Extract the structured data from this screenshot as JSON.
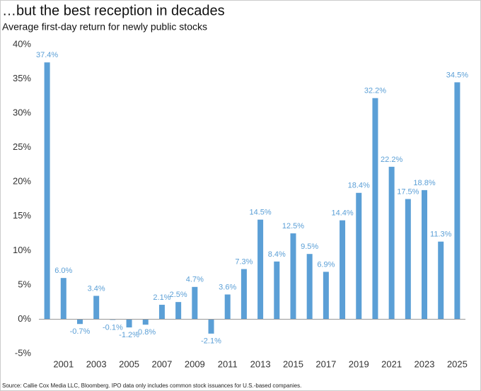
{
  "chart_data": {
    "type": "bar",
    "title": "…but the best reception in decades",
    "subtitle": "Average first-day return for newly public stocks",
    "source": "Source: Callie Cox Media LLC, Bloomberg. IPO data only includes common stock issuances for U.S.-based companies.",
    "categories": [
      null,
      "2001",
      null,
      "2003",
      null,
      "2005",
      null,
      "2007",
      null,
      "2009",
      null,
      "2011",
      null,
      "2013",
      null,
      "2015",
      null,
      "2017",
      null,
      "2019",
      null,
      "2021",
      null,
      "2023",
      null,
      "2025"
    ],
    "values": [
      37.4,
      6.0,
      -0.7,
      3.4,
      -0.1,
      -1.2,
      -0.8,
      2.1,
      2.5,
      4.7,
      -2.1,
      3.6,
      7.3,
      14.5,
      8.4,
      12.5,
      9.5,
      6.9,
      14.4,
      18.4,
      32.2,
      22.2,
      17.5,
      18.8,
      11.3,
      34.5
    ],
    "value_labels": [
      "37.4%",
      "6.0%",
      "-0.7%",
      "3.4%",
      "-0.1%",
      "-1.2%",
      "-0.8%",
      "2.1%",
      "2.5%",
      "4.7%",
      "-2.1%",
      "3.6%",
      "7.3%",
      "14.5%",
      "8.4%",
      "12.5%",
      "9.5%",
      "6.9%",
      "14.4%",
      "18.4%",
      "32.2%",
      "22.2%",
      "17.5%",
      "18.8%",
      "11.3%",
      "34.5%"
    ],
    "color": "#5b9fd6",
    "ylim": [
      -5,
      40
    ],
    "yticks": [
      {
        "value": -5,
        "label": "-5%"
      },
      {
        "value": 0,
        "label": "0%"
      },
      {
        "value": 5,
        "label": "5%"
      },
      {
        "value": 10,
        "label": "10%"
      },
      {
        "value": 15,
        "label": "15%"
      },
      {
        "value": 20,
        "label": "20%"
      },
      {
        "value": 25,
        "label": "25%"
      },
      {
        "value": 30,
        "label": "30%"
      },
      {
        "value": 35,
        "label": "35%"
      },
      {
        "value": 40,
        "label": "40%"
      }
    ],
    "grid": false
  }
}
